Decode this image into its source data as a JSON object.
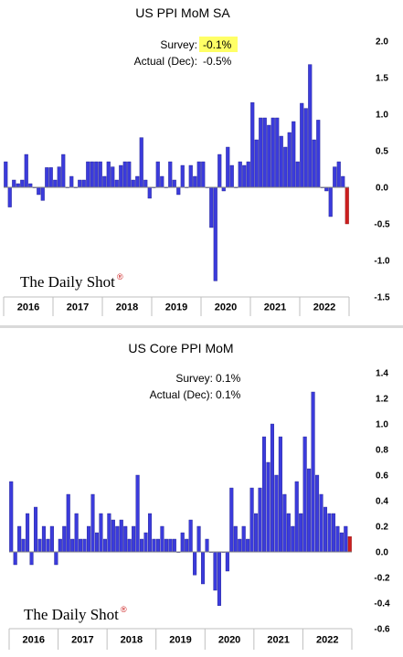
{
  "chart_data": [
    {
      "type": "bar",
      "title": "US PPI MoM SA",
      "annotations": {
        "survey_label": "Survey:",
        "survey_value": "-0.1%",
        "actual_label": "Actual (Dec):",
        "actual_value": "-0.5%"
      },
      "logo": "The Daily Shot",
      "logo_mark": "®",
      "ylim": [
        -1.5,
        2.0
      ],
      "yticks": [
        "2.0",
        "1.5",
        "1.0",
        "0.5",
        "0.0",
        "-0.5",
        "-1.0",
        "-1.5"
      ],
      "ytick_values": [
        2.0,
        1.5,
        1.0,
        0.5,
        0.0,
        -0.5,
        -1.0,
        -1.5
      ],
      "xlabels": [
        "2016",
        "2017",
        "2018",
        "2019",
        "2020",
        "2021",
        "2022"
      ],
      "start": "2016-01",
      "end": "2022-12",
      "series": [
        {
          "color": "#3b3bdc",
          "highlight_color": "#cc1f1f",
          "values": [
            0.35,
            -0.27,
            0.1,
            0.05,
            0.1,
            0.45,
            0.05,
            0.0,
            -0.1,
            -0.18,
            0.27,
            0.27,
            0.1,
            0.28,
            0.45,
            0.0,
            0.15,
            0.0,
            0.1,
            0.1,
            0.35,
            0.35,
            0.35,
            0.35,
            0.15,
            0.35,
            0.28,
            0.1,
            0.3,
            0.35,
            0.35,
            0.1,
            0.15,
            0.68,
            0.1,
            -0.15,
            0.0,
            0.35,
            0.15,
            0.0,
            0.35,
            0.1,
            -0.1,
            0.3,
            0.0,
            0.3,
            0.15,
            0.35,
            0.35,
            0.0,
            -0.55,
            -1.28,
            0.45,
            -0.05,
            0.55,
            0.3,
            0.0,
            0.35,
            0.3,
            0.35,
            1.16,
            0.65,
            0.95,
            0.95,
            0.85,
            0.95,
            0.95,
            0.7,
            0.55,
            0.75,
            0.9,
            0.35,
            1.15,
            1.08,
            1.68,
            0.65,
            0.92,
            0.0,
            -0.05,
            -0.4,
            0.28,
            0.35,
            0.15,
            -0.5
          ]
        }
      ]
    },
    {
      "type": "bar",
      "title": "US Core PPI MoM",
      "annotations": {
        "survey_label": "Survey:",
        "survey_value": "0.1%",
        "actual_label": "Actual (Dec):",
        "actual_value": "0.1%"
      },
      "logo": "The Daily Shot",
      "logo_mark": "®",
      "ylim": [
        -0.6,
        1.4
      ],
      "yticks": [
        "1.4",
        "1.2",
        "1.0",
        "0.8",
        "0.6",
        "0.4",
        "0.2",
        "0.0",
        "-0.2",
        "-0.4",
        "-0.6"
      ],
      "ytick_values": [
        1.4,
        1.2,
        1.0,
        0.8,
        0.6,
        0.4,
        0.2,
        0.0,
        -0.2,
        -0.4,
        -0.6
      ],
      "xlabels": [
        "2016",
        "2017",
        "2018",
        "2019",
        "2020",
        "2021",
        "2022"
      ],
      "start": "2016-01",
      "end": "2022-12",
      "series": [
        {
          "color": "#3b3bdc",
          "highlight_color": "#cc1f1f",
          "values": [
            0.55,
            -0.1,
            0.2,
            0.1,
            0.3,
            -0.1,
            0.35,
            0.1,
            0.2,
            0.1,
            0.2,
            -0.1,
            0.1,
            0.2,
            0.45,
            0.1,
            0.3,
            0.1,
            0.1,
            0.2,
            0.45,
            0.15,
            0.3,
            0.1,
            0.3,
            0.25,
            0.2,
            0.25,
            0.2,
            0.1,
            0.2,
            0.6,
            0.1,
            0.15,
            0.3,
            0.1,
            0.1,
            0.2,
            0.1,
            0.1,
            0.1,
            0.0,
            0.15,
            0.1,
            0.25,
            -0.18,
            0.2,
            -0.25,
            0.1,
            0.0,
            -0.3,
            -0.42,
            0.0,
            -0.15,
            0.5,
            0.2,
            0.1,
            0.2,
            0.1,
            0.5,
            0.3,
            0.5,
            0.9,
            0.7,
            1.0,
            0.6,
            0.9,
            0.45,
            0.3,
            0.2,
            0.55,
            0.3,
            0.9,
            0.65,
            1.25,
            0.6,
            0.45,
            0.35,
            0.3,
            0.3,
            0.2,
            0.15,
            0.2,
            0.12
          ]
        }
      ]
    }
  ]
}
